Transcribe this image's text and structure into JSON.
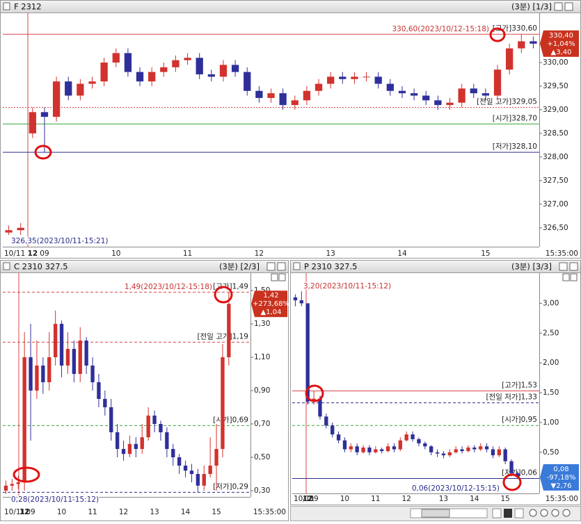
{
  "chart_data": [
    {
      "type": "candlestick",
      "title": "F 2312",
      "period": "(3분) [1/3]",
      "time_label": "15:35:00",
      "up_color": "#d2322d",
      "down_color": "#2f2f9a",
      "categories": [
        "10/11",
        null,
        "12",
        "09",
        null,
        null,
        null,
        null,
        null,
        "10",
        null,
        null,
        null,
        null,
        null,
        "11",
        null,
        null,
        null,
        null,
        null,
        "12",
        null,
        null,
        null,
        null,
        null,
        "13",
        null,
        null,
        null,
        null,
        null,
        "14",
        null,
        null,
        null,
        null,
        null,
        null,
        "15",
        null,
        null,
        null,
        null
      ],
      "open": [
        326.4,
        326.45,
        328.5,
        328.95,
        328.85,
        329.6,
        329.3,
        329.55,
        329.6,
        330.0,
        330.2,
        329.8,
        329.6,
        329.8,
        329.9,
        330.05,
        330.1,
        329.75,
        329.7,
        329.95,
        329.8,
        329.4,
        329.25,
        329.35,
        329.1,
        329.2,
        329.4,
        329.55,
        329.7,
        329.65,
        329.7,
        329.7,
        329.55,
        329.4,
        329.35,
        329.3,
        329.2,
        329.1,
        329.15,
        329.45,
        329.35,
        329.3,
        329.85,
        330.3,
        330.45
      ],
      "high": [
        326.55,
        326.6,
        329.05,
        329.05,
        329.7,
        329.7,
        329.65,
        329.7,
        330.1,
        330.3,
        330.3,
        329.9,
        329.9,
        330.0,
        330.15,
        330.2,
        330.2,
        329.85,
        330.05,
        330.05,
        329.9,
        329.5,
        329.45,
        329.45,
        329.3,
        329.5,
        329.65,
        329.8,
        329.8,
        329.8,
        329.8,
        329.8,
        329.65,
        329.5,
        329.45,
        329.4,
        329.3,
        329.25,
        329.55,
        329.55,
        329.45,
        329.95,
        330.4,
        330.6,
        330.55
      ],
      "low": [
        326.35,
        326.35,
        328.4,
        328.1,
        328.75,
        329.2,
        329.2,
        329.45,
        329.5,
        329.9,
        329.7,
        329.5,
        329.5,
        329.7,
        329.8,
        329.95,
        329.65,
        329.6,
        329.6,
        329.7,
        329.3,
        329.15,
        329.15,
        329.0,
        329.0,
        329.1,
        329.3,
        329.45,
        329.55,
        329.55,
        329.6,
        329.45,
        329.3,
        329.25,
        329.2,
        329.1,
        329.0,
        329.0,
        329.05,
        329.25,
        329.2,
        329.2,
        329.75,
        330.2,
        330.3
      ],
      "close": [
        326.45,
        326.5,
        328.95,
        328.85,
        329.6,
        329.3,
        329.55,
        329.6,
        330.0,
        330.2,
        329.8,
        329.6,
        329.8,
        329.9,
        330.05,
        330.1,
        329.75,
        329.7,
        329.95,
        329.8,
        329.4,
        329.25,
        329.35,
        329.1,
        329.2,
        329.4,
        329.55,
        329.7,
        329.65,
        329.7,
        329.7,
        329.55,
        329.4,
        329.35,
        329.3,
        329.2,
        329.1,
        329.15,
        329.45,
        329.35,
        329.3,
        329.85,
        330.3,
        330.45,
        330.4
      ],
      "ylim": [
        326.1,
        331.03
      ],
      "yticks": [
        {
          "value": 326.5,
          "label": "326,50"
        },
        {
          "value": 327,
          "label": "327,00"
        },
        {
          "value": 327.5,
          "label": "327,50"
        },
        {
          "value": 328,
          "label": "328,00"
        },
        {
          "value": 328.5,
          "label": "328,50"
        },
        {
          "value": 329,
          "label": "329,00"
        },
        {
          "value": 329.5,
          "label": "329,50"
        },
        {
          "value": 330,
          "label": "330,00"
        }
      ],
      "levels": [
        {
          "value": 330.6,
          "label": "[고가]330,60",
          "color": "#d9434a",
          "style": "solid"
        },
        {
          "value": 329.05,
          "label": "[전일 고가]329,05",
          "color": "#d9434a",
          "style": "dotted"
        },
        {
          "value": 328.7,
          "label": "[시가]328,70",
          "color": "#3aa53a",
          "style": "solid"
        },
        {
          "value": 328.1,
          "label": "[저가]328,10",
          "color": "#2a2a8a",
          "style": "solid"
        }
      ],
      "high_note": "330,60(2023/10/12-15:18)",
      "low_note": "326,35(2023/10/11-15:21)",
      "price_tag": {
        "lines": [
          "330,40",
          "+1,04%",
          "▲3,40"
        ],
        "color": "#c8321e"
      }
    },
    {
      "type": "candlestick",
      "title": "C 2310 327.5",
      "period": "(3분) [2/3]",
      "time_label": "15:35:00",
      "up_color": "#d2322d",
      "down_color": "#2f2f9a",
      "categories": [
        "10/11",
        null,
        null,
        "12",
        "09",
        null,
        null,
        null,
        null,
        "10",
        null,
        null,
        null,
        null,
        "11",
        null,
        null,
        null,
        null,
        "12",
        null,
        null,
        null,
        null,
        "13",
        null,
        null,
        null,
        null,
        "14",
        null,
        null,
        null,
        null,
        "15",
        null,
        null,
        null,
        null,
        null
      ],
      "open": [
        0.3,
        0.33,
        0.34,
        0.35,
        1.1,
        0.9,
        1.05,
        0.95,
        1.1,
        1.3,
        1.05,
        1.15,
        1.0,
        1.2,
        1.05,
        0.95,
        0.85,
        0.8,
        0.65,
        0.55,
        0.52,
        0.58,
        0.55,
        0.62,
        0.75,
        0.7,
        0.65,
        0.55,
        0.5,
        0.45,
        0.42,
        0.4,
        0.33,
        0.4,
        0.45,
        0.55,
        1.1,
        null,
        null,
        null
      ],
      "high": [
        0.36,
        0.37,
        0.39,
        1.25,
        1.3,
        1.2,
        1.1,
        1.25,
        1.38,
        1.32,
        1.25,
        1.2,
        1.28,
        1.22,
        1.1,
        1.0,
        0.9,
        0.85,
        0.7,
        0.6,
        0.63,
        0.62,
        0.7,
        0.8,
        0.78,
        0.72,
        0.68,
        0.58,
        0.52,
        0.48,
        0.46,
        0.43,
        0.45,
        0.62,
        0.7,
        1.18,
        1.49,
        null,
        null,
        null
      ],
      "low": [
        0.28,
        0.3,
        0.31,
        0.3,
        0.6,
        0.85,
        0.88,
        0.9,
        1.05,
        0.98,
        1.0,
        0.95,
        0.95,
        1.0,
        0.9,
        0.8,
        0.75,
        0.6,
        0.5,
        0.48,
        0.5,
        0.5,
        0.52,
        0.6,
        0.65,
        0.6,
        0.5,
        0.45,
        0.4,
        0.38,
        0.35,
        0.29,
        0.3,
        0.38,
        0.3,
        0.5,
        1.05,
        null,
        null,
        null
      ],
      "close": [
        0.33,
        0.34,
        0.35,
        1.1,
        0.9,
        1.05,
        0.95,
        1.1,
        1.3,
        1.05,
        1.15,
        1.0,
        1.2,
        1.05,
        0.95,
        0.85,
        0.8,
        0.65,
        0.55,
        0.52,
        0.58,
        0.55,
        0.62,
        0.75,
        0.7,
        0.65,
        0.55,
        0.5,
        0.45,
        0.42,
        0.4,
        0.33,
        0.4,
        0.45,
        0.55,
        1.1,
        1.42,
        null,
        null,
        null
      ],
      "ylim": [
        0.2625,
        1.596
      ],
      "yticks": [
        {
          "value": 0.3,
          "label": "0,30"
        },
        {
          "value": 0.5,
          "label": "0,50"
        },
        {
          "value": 0.7,
          "label": "0,70"
        },
        {
          "value": 0.9,
          "label": "0,90"
        },
        {
          "value": 1.1,
          "label": "1,10"
        },
        {
          "value": 1.3,
          "label": "1,30"
        },
        {
          "value": 1.5,
          "label": "1,50"
        }
      ],
      "levels": [
        {
          "value": 1.49,
          "label": "[고가]1,49",
          "color": "#d9434a",
          "style": "dashed"
        },
        {
          "value": 1.19,
          "label": "[전일 고가]1,19",
          "color": "#d9434a",
          "style": "dashed"
        },
        {
          "value": 0.69,
          "label": "[시가]0,69",
          "color": "#3aa53a",
          "style": "dashed"
        },
        {
          "value": 0.29,
          "label": "[저가]0,29",
          "color": "#2a2a8a",
          "style": "dashed"
        }
      ],
      "high_note": "1,49(2023/10/12-15:18)",
      "low_note": "0,28(2023/10/11-15:12)",
      "price_tag": {
        "lines": [
          "1,42",
          "+273,68%",
          "▲1,04"
        ],
        "color": "#c8321e"
      }
    },
    {
      "type": "candlestick",
      "title": "P 2310 327.5",
      "period": "(3분) [3/3]",
      "time_label": "15:35:00",
      "up_color": "#d2322d",
      "down_color": "#2f2f9a",
      "categories": [
        "10/11",
        null,
        "12",
        "09",
        null,
        null,
        null,
        null,
        "10",
        null,
        null,
        null,
        null,
        "11",
        null,
        null,
        null,
        null,
        "12",
        null,
        null,
        null,
        null,
        null,
        "13",
        null,
        null,
        null,
        null,
        "14",
        null,
        null,
        null,
        null,
        "15",
        null,
        null,
        null,
        null,
        null
      ],
      "open": [
        3.1,
        3.05,
        3.0,
        1.35,
        1.4,
        1.1,
        0.95,
        0.8,
        0.7,
        0.55,
        0.6,
        0.5,
        0.58,
        0.5,
        0.55,
        0.52,
        0.6,
        0.55,
        0.7,
        0.8,
        0.72,
        0.65,
        0.6,
        0.5,
        0.48,
        0.45,
        0.5,
        0.55,
        0.52,
        0.58,
        0.55,
        0.6,
        0.55,
        0.45,
        0.55,
        0.35,
        0.15,
        null,
        null,
        null
      ],
      "high": [
        3.15,
        3.2,
        3.0,
        1.53,
        1.45,
        1.15,
        1.0,
        0.85,
        0.75,
        0.65,
        0.65,
        0.62,
        0.62,
        0.6,
        0.58,
        0.65,
        0.65,
        0.75,
        0.85,
        0.85,
        0.75,
        0.68,
        0.62,
        0.55,
        0.52,
        0.55,
        0.6,
        0.6,
        0.62,
        0.62,
        0.65,
        0.65,
        0.6,
        0.6,
        0.58,
        0.38,
        0.18,
        null,
        null,
        null
      ],
      "low": [
        2.95,
        2.95,
        1.3,
        1.3,
        1.05,
        0.9,
        0.75,
        0.65,
        0.5,
        0.5,
        0.45,
        0.48,
        0.45,
        0.48,
        0.48,
        0.5,
        0.5,
        0.52,
        0.68,
        0.68,
        0.6,
        0.55,
        0.45,
        0.42,
        0.4,
        0.42,
        0.48,
        0.48,
        0.5,
        0.5,
        0.52,
        0.5,
        0.4,
        0.42,
        0.3,
        0.1,
        0.06,
        null,
        null,
        null
      ],
      "close": [
        3.05,
        3.0,
        1.35,
        1.4,
        1.1,
        0.95,
        0.8,
        0.7,
        0.55,
        0.6,
        0.5,
        0.58,
        0.5,
        0.55,
        0.52,
        0.6,
        0.55,
        0.7,
        0.8,
        0.72,
        0.65,
        0.6,
        0.5,
        0.48,
        0.45,
        0.5,
        0.55,
        0.52,
        0.58,
        0.55,
        0.6,
        0.55,
        0.45,
        0.55,
        0.35,
        0.15,
        0.08,
        null,
        null,
        null
      ],
      "ylim": [
        -0.19,
        3.483
      ],
      "yticks": [
        {
          "value": 0.5,
          "label": "0,50"
        },
        {
          "value": 1,
          "label": "1,00"
        },
        {
          "value": 1.5,
          "label": "1,50"
        },
        {
          "value": 2,
          "label": "2,00"
        },
        {
          "value": 2.5,
          "label": "2,50"
        },
        {
          "value": 3,
          "label": "3,00"
        }
      ],
      "levels": [
        {
          "value": 1.53,
          "label": "[고가]1,53",
          "color": "#d9434a",
          "style": "solid"
        },
        {
          "value": 1.33,
          "label": "[전일 저가]1,33",
          "color": "#2a2a8a",
          "style": "dashed"
        },
        {
          "value": 0.95,
          "label": "[시가]0,95",
          "color": "#3aa53a",
          "style": "dashed"
        },
        {
          "value": 0.06,
          "label": "[저가]0,06",
          "color": "#2a2a8a",
          "style": "solid"
        }
      ],
      "high_note": "3,20(2023/10/11-15:12)",
      "low_note": "0,06(2023/10/12-15:15)",
      "price_tag": {
        "lines": [
          "0,08",
          "-97,18%",
          "▼2,76"
        ],
        "color": "#3a7ad8"
      }
    }
  ]
}
